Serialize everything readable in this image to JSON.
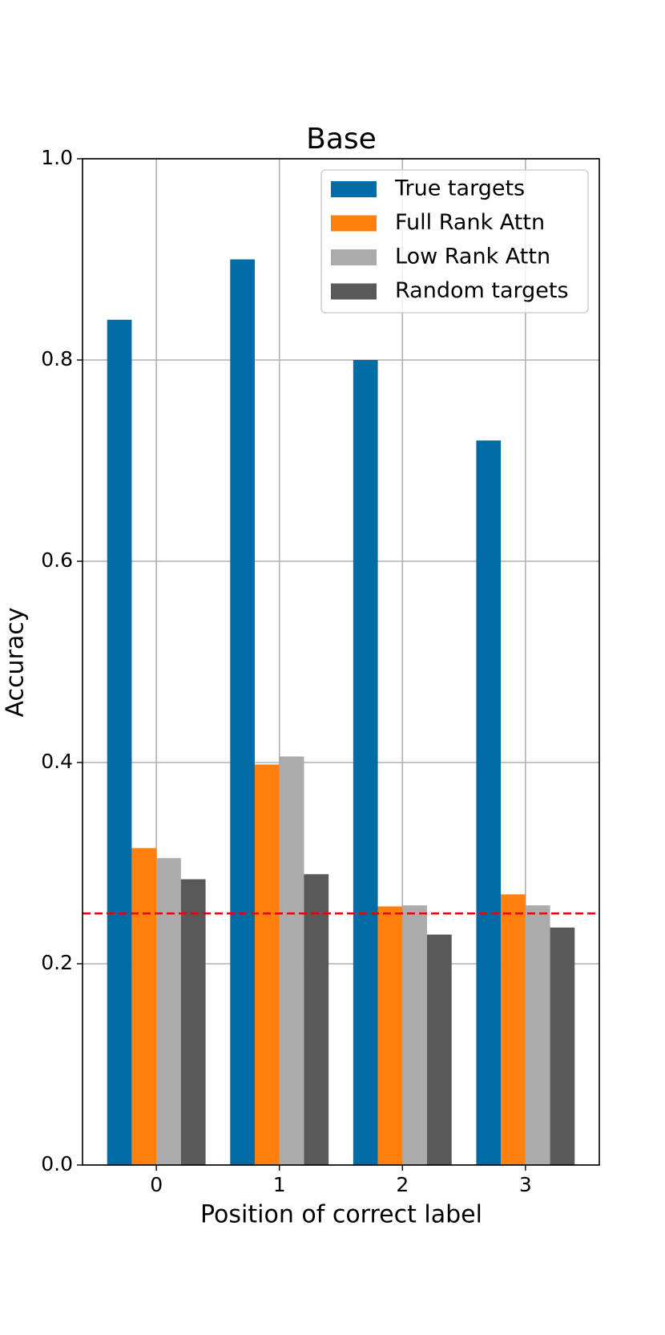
{
  "chart_data": {
    "type": "bar",
    "title": "Base",
    "xlabel": "Position of correct label",
    "ylabel": "Accuracy",
    "x": [
      0,
      1,
      2,
      3
    ],
    "xlim": [
      -0.6,
      3.6
    ],
    "xticks": [
      0,
      1,
      2,
      3
    ],
    "ylim": [
      0,
      1
    ],
    "yticks": [
      {
        "value": 0,
        "label": "0.0"
      },
      {
        "value": 0.2,
        "label": "0.2"
      },
      {
        "value": 0.4,
        "label": "0.4"
      },
      {
        "value": 0.6,
        "label": "0.6"
      },
      {
        "value": 0.8,
        "label": "0.8"
      },
      {
        "value": 1,
        "label": "1.0"
      }
    ],
    "grid": true,
    "legend": "upper right",
    "series": [
      {
        "name": "True targets",
        "color": "#006ba4",
        "values": [
          0.84,
          0.9,
          0.8,
          0.72
        ]
      },
      {
        "name": "Full Rank Attn",
        "color": "#ff800e",
        "values": [
          0.315,
          0.398,
          0.257,
          0.269
        ]
      },
      {
        "name": "Low Rank Attn",
        "color": "#ababab",
        "values": [
          0.305,
          0.406,
          0.258,
          0.258
        ]
      },
      {
        "name": "Random targets",
        "color": "#595959",
        "values": [
          0.284,
          0.289,
          0.229,
          0.236
        ]
      }
    ],
    "hline": {
      "value": 0.25,
      "color": "#e8000b"
    }
  }
}
